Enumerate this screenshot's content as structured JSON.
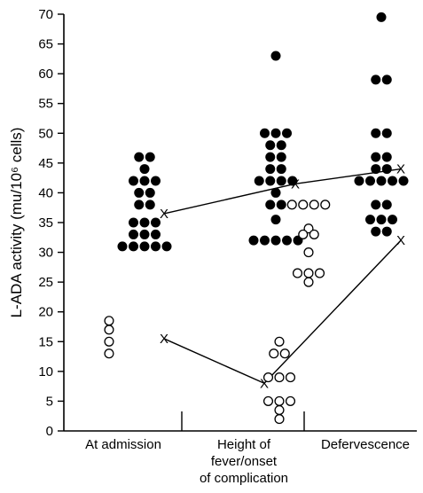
{
  "chart_data": {
    "type": "scatter",
    "title": "",
    "ylabel": "L-ADA activity (mu/10⁶ cells)",
    "xlabel": "",
    "ylim": [
      0,
      70
    ],
    "yticks": [
      0,
      5,
      10,
      15,
      20,
      25,
      30,
      35,
      40,
      45,
      50,
      55,
      60,
      65,
      70
    ],
    "categories": [
      "At admission",
      "Height of\nfever/onset\nof complication",
      "Defervescence"
    ],
    "grid": false,
    "legend": "none",
    "series": [
      {
        "marker": "filled-circle",
        "color": "#000000",
        "points": [
          {
            "x": 0,
            "y": 46
          },
          {
            "x": 0,
            "y": 46
          },
          {
            "x": 0,
            "y": 44
          },
          {
            "x": 0,
            "y": 42
          },
          {
            "x": 0,
            "y": 42
          },
          {
            "x": 0,
            "y": 42
          },
          {
            "x": 0,
            "y": 40
          },
          {
            "x": 0,
            "y": 40
          },
          {
            "x": 0,
            "y": 38
          },
          {
            "x": 0,
            "y": 38
          },
          {
            "x": 0,
            "y": 35
          },
          {
            "x": 0,
            "y": 35
          },
          {
            "x": 0,
            "y": 35
          },
          {
            "x": 0,
            "y": 33
          },
          {
            "x": 0,
            "y": 33
          },
          {
            "x": 0,
            "y": 33
          },
          {
            "x": 0,
            "y": 31
          },
          {
            "x": 0,
            "y": 31
          },
          {
            "x": 0,
            "y": 31
          },
          {
            "x": 0,
            "y": 31
          },
          {
            "x": 0,
            "y": 31
          },
          {
            "x": 1,
            "y": 63
          },
          {
            "x": 1,
            "y": 50
          },
          {
            "x": 1,
            "y": 50
          },
          {
            "x": 1,
            "y": 50
          },
          {
            "x": 1,
            "y": 48
          },
          {
            "x": 1,
            "y": 48
          },
          {
            "x": 1,
            "y": 46
          },
          {
            "x": 1,
            "y": 46
          },
          {
            "x": 1,
            "y": 44
          },
          {
            "x": 1,
            "y": 44
          },
          {
            "x": 1,
            "y": 42
          },
          {
            "x": 1,
            "y": 42
          },
          {
            "x": 1,
            "y": 42
          },
          {
            "x": 1,
            "y": 42
          },
          {
            "x": 1,
            "y": 40
          },
          {
            "x": 1,
            "y": 38
          },
          {
            "x": 1,
            "y": 38
          },
          {
            "x": 1,
            "y": 35.5
          },
          {
            "x": 1,
            "y": 32
          },
          {
            "x": 1,
            "y": 32
          },
          {
            "x": 1,
            "y": 32
          },
          {
            "x": 1,
            "y": 32
          },
          {
            "x": 1,
            "y": 32
          },
          {
            "x": 2,
            "y": 69.5
          },
          {
            "x": 2,
            "y": 59
          },
          {
            "x": 2,
            "y": 59
          },
          {
            "x": 2,
            "y": 50
          },
          {
            "x": 2,
            "y": 50
          },
          {
            "x": 2,
            "y": 46
          },
          {
            "x": 2,
            "y": 46
          },
          {
            "x": 2,
            "y": 44
          },
          {
            "x": 2,
            "y": 44
          },
          {
            "x": 2,
            "y": 42
          },
          {
            "x": 2,
            "y": 42
          },
          {
            "x": 2,
            "y": 42
          },
          {
            "x": 2,
            "y": 42
          },
          {
            "x": 2,
            "y": 42
          },
          {
            "x": 2,
            "y": 38
          },
          {
            "x": 2,
            "y": 38
          },
          {
            "x": 2,
            "y": 35.5
          },
          {
            "x": 2,
            "y": 35.5
          },
          {
            "x": 2,
            "y": 35.5
          },
          {
            "x": 2,
            "y": 33.5
          },
          {
            "x": 2,
            "y": 33.5
          }
        ]
      },
      {
        "marker": "open-circle",
        "color": "#000000",
        "points": [
          {
            "x": 0,
            "y": 18.5
          },
          {
            "x": 0,
            "y": 17
          },
          {
            "x": 0,
            "y": 15
          },
          {
            "x": 0,
            "y": 13
          },
          {
            "x": 1,
            "y": 15
          },
          {
            "x": 1,
            "y": 13
          },
          {
            "x": 1,
            "y": 13
          },
          {
            "x": 1,
            "y": 9
          },
          {
            "x": 1,
            "y": 9
          },
          {
            "x": 1,
            "y": 9
          },
          {
            "x": 1,
            "y": 5
          },
          {
            "x": 1,
            "y": 5
          },
          {
            "x": 1,
            "y": 5
          },
          {
            "x": 1,
            "y": 3.5
          },
          {
            "x": 1,
            "y": 2
          },
          {
            "x": 2,
            "y": 38
          },
          {
            "x": 2,
            "y": 38
          },
          {
            "x": 2,
            "y": 38
          },
          {
            "x": 2,
            "y": 38
          },
          {
            "x": 2,
            "y": 34
          },
          {
            "x": 2,
            "y": 33
          },
          {
            "x": 2,
            "y": 33
          },
          {
            "x": 2,
            "y": 30
          },
          {
            "x": 2,
            "y": 26.5
          },
          {
            "x": 2,
            "y": 26.5
          },
          {
            "x": 2,
            "y": 26.5
          },
          {
            "x": 2,
            "y": 25
          }
        ]
      }
    ],
    "mean_lines": [
      {
        "of": "filled-circle",
        "values": [
          36.5,
          41.5,
          44
        ]
      },
      {
        "of": "open-circle",
        "values": [
          15.5,
          8,
          32
        ]
      }
    ]
  }
}
